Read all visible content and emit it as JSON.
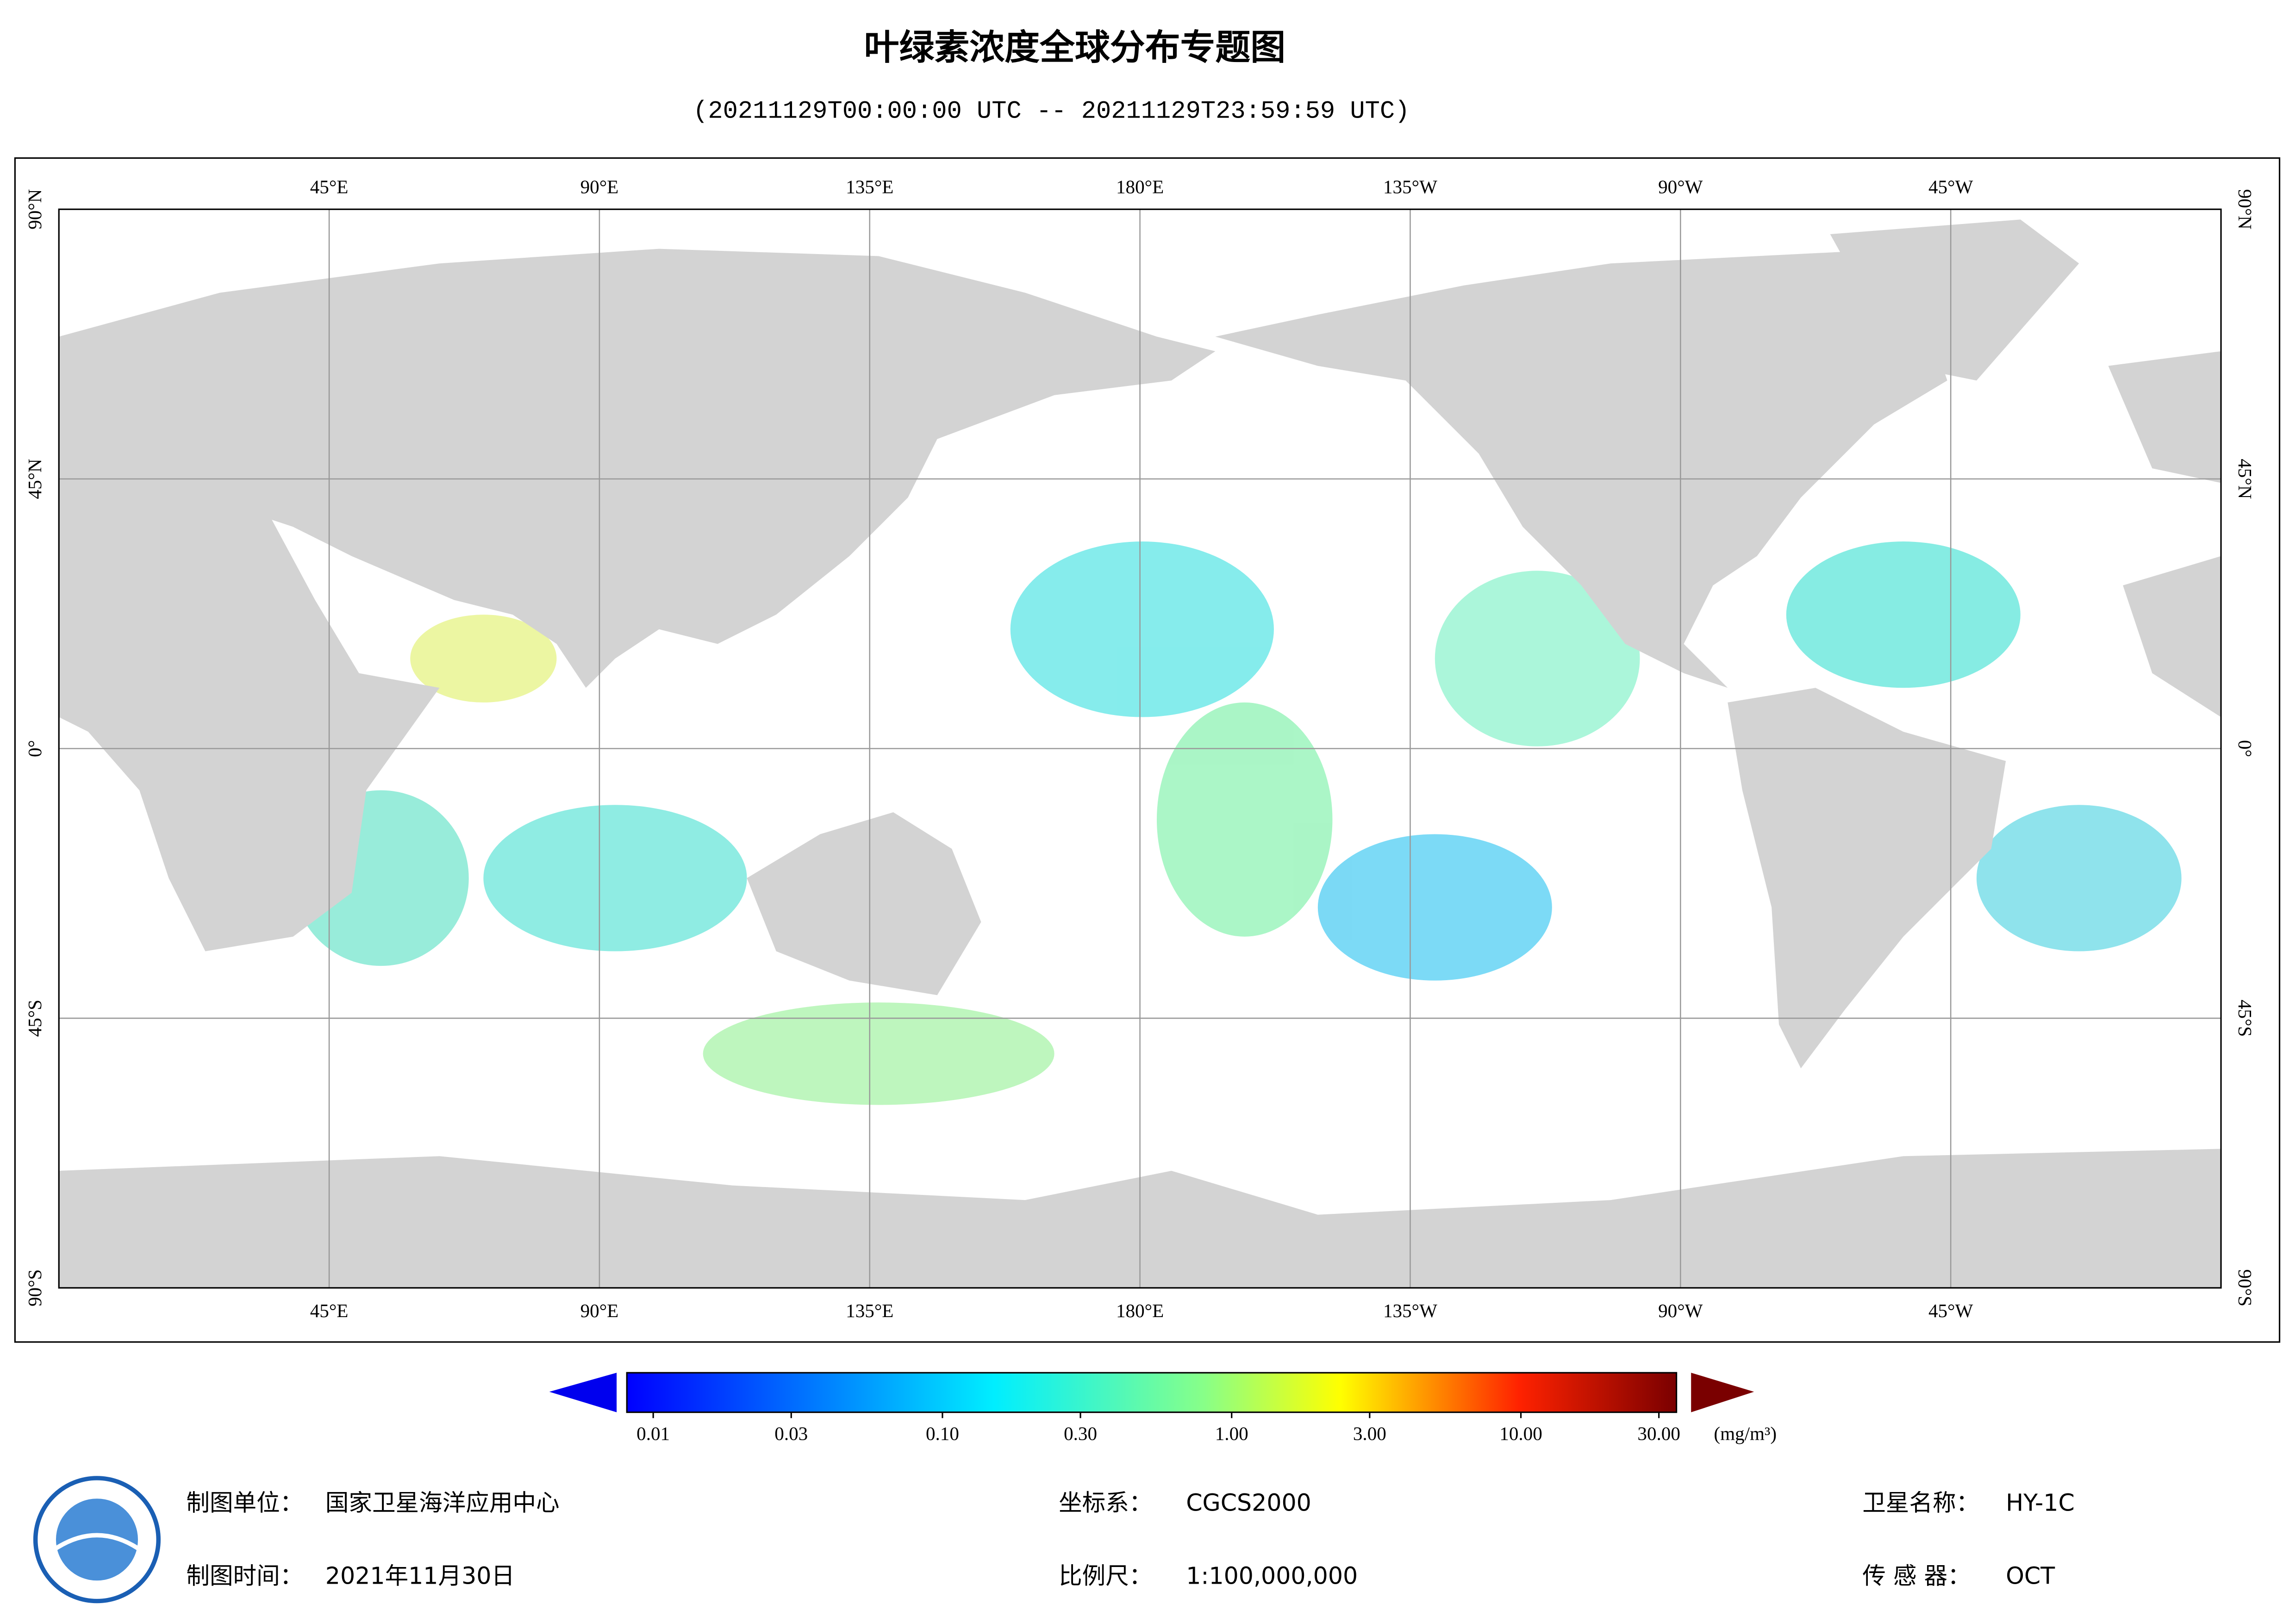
{
  "title": "叶绿素浓度全球分布专题图",
  "subtitle": "(20211129T00:00:00 UTC -- 20211129T23:59:59 UTC)",
  "map": {
    "lon_range": [
      0,
      360
    ],
    "lat_range": [
      -90,
      90
    ],
    "lon_ticks": [
      {
        "value": 45,
        "label": "45°E"
      },
      {
        "value": 90,
        "label": "90°E"
      },
      {
        "value": 135,
        "label": "135°E"
      },
      {
        "value": 180,
        "label": "180°E"
      },
      {
        "value": 225,
        "label": "135°W"
      },
      {
        "value": 270,
        "label": "90°W"
      },
      {
        "value": 315,
        "label": "45°W"
      }
    ],
    "lat_ticks": [
      {
        "value": 90,
        "label": "90°N"
      },
      {
        "value": 45,
        "label": "45°N"
      },
      {
        "value": 0,
        "label": "0°"
      },
      {
        "value": -45,
        "label": "45°S"
      },
      {
        "value": -90,
        "label": "90°S"
      }
    ]
  },
  "colorbar": {
    "range": [
      0.01,
      30
    ],
    "ticks": [
      {
        "value": 0.01,
        "label": "0.01"
      },
      {
        "value": 0.03,
        "label": "0.03"
      },
      {
        "value": 0.1,
        "label": "0.10"
      },
      {
        "value": 0.3,
        "label": "0.30"
      },
      {
        "value": 1,
        "label": "1.00"
      },
      {
        "value": 3,
        "label": "3.00"
      },
      {
        "value": 10,
        "label": "10.00"
      },
      {
        "value": 30,
        "label": "30.00"
      }
    ],
    "unit": "(mg/m³)"
  },
  "footer": {
    "unit_label": "制图单位：",
    "unit": "国家卫星海洋应用中心",
    "date_label": "制图时间：",
    "date": "2021年11月30日",
    "crs_label": "坐标系：",
    "crs": "CGCS2000",
    "scale_label": "比例尺：",
    "scale": "1:100,000,000",
    "satellite_label": "卫星名称：",
    "satellite": "HY-1C",
    "sensor_label": "传 感 器：",
    "sensor": "OCT"
  }
}
